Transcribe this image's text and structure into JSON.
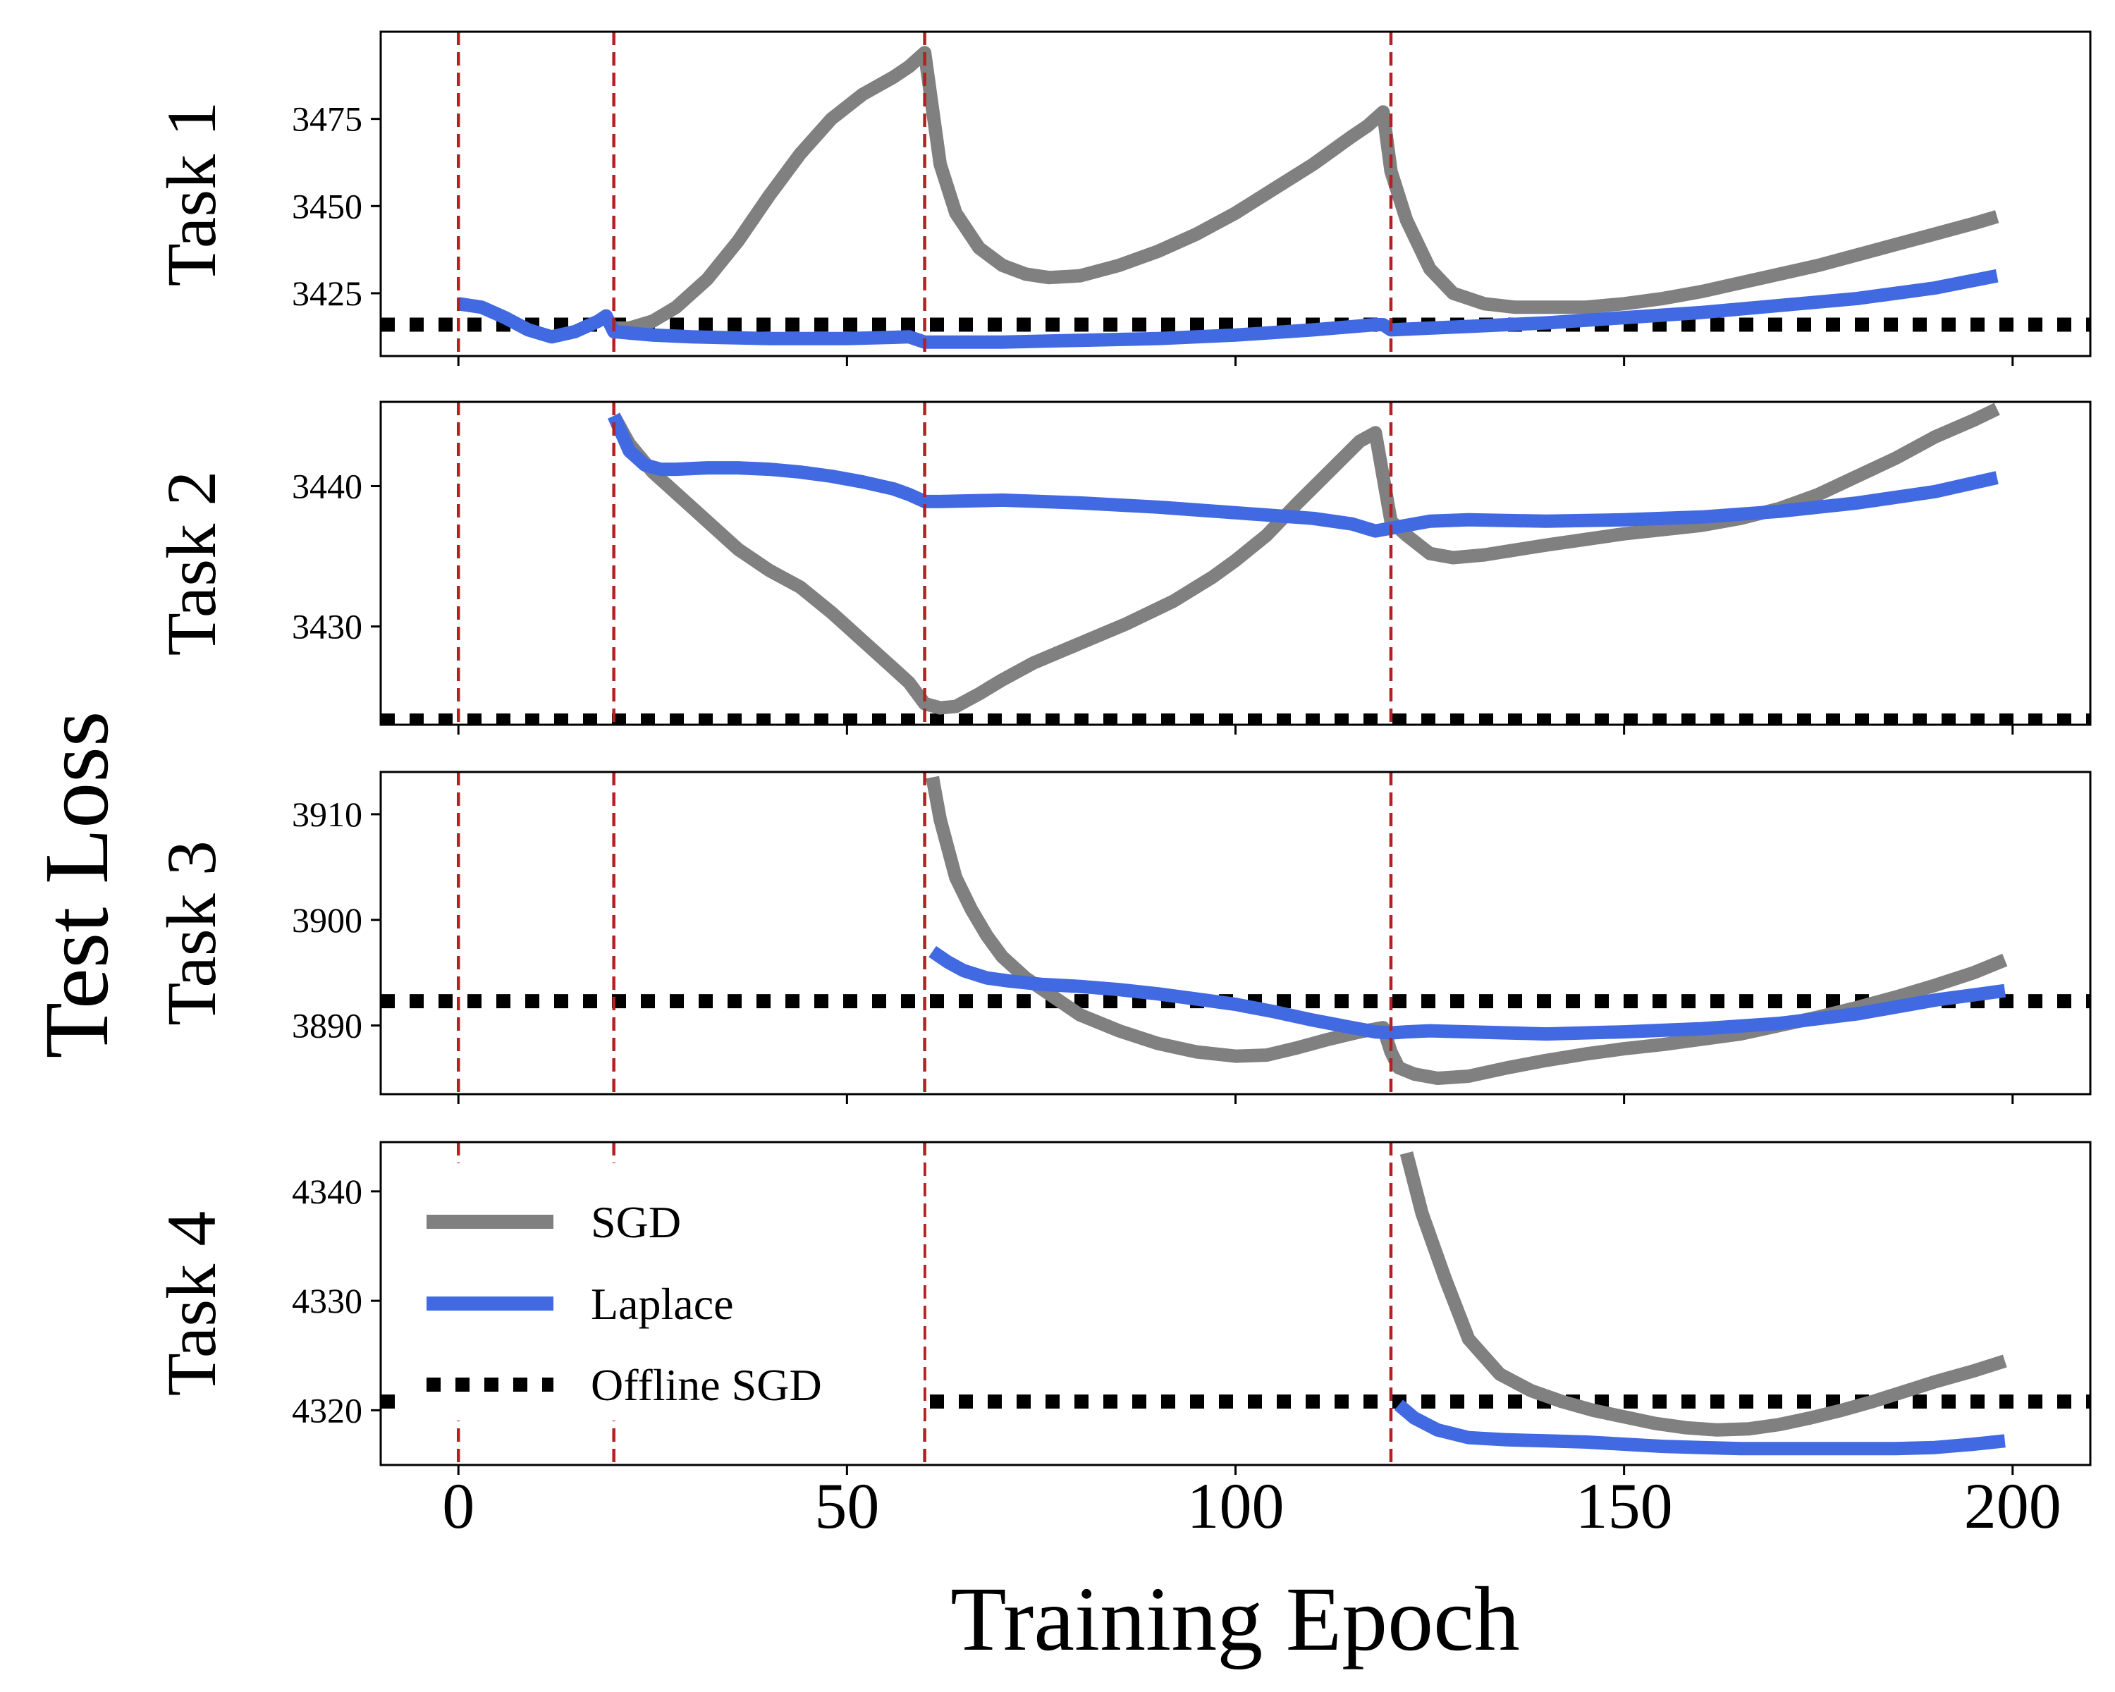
{
  "figure": {
    "ylabel": "Test Loss",
    "xlabel": "Training Epoch",
    "xticks": [
      "0",
      "50",
      "100",
      "150",
      "200"
    ]
  },
  "legend": {
    "placement": "upper-left of Task 4 panel",
    "items": [
      {
        "label": "SGD",
        "color": "#808080",
        "style": "solid"
      },
      {
        "label": "Laplace",
        "color": "#4169E1",
        "style": "solid"
      },
      {
        "label": "Offline SGD",
        "color": "#000000",
        "style": "dotted"
      }
    ]
  },
  "colors": {
    "sgd": "#808080",
    "laplace": "#4169E1",
    "offline": "#000000",
    "boundary": "#B22222"
  },
  "chart_data": [
    {
      "type": "line",
      "panel_label": "Task 1",
      "xlim": [
        -10,
        210
      ],
      "ylim": [
        3407,
        3500
      ],
      "yticks": [
        3425,
        3450,
        3475
      ],
      "task_boundaries": [
        0,
        20,
        60,
        120
      ],
      "offline_sgd": 3416,
      "series": [
        {
          "name": "SGD",
          "x": [
            20,
            22,
            25,
            28,
            32,
            36,
            40,
            44,
            48,
            52,
            56,
            58,
            60,
            62,
            64,
            67,
            70,
            73,
            76,
            80,
            85,
            90,
            95,
            100,
            105,
            110,
            115,
            117,
            119,
            120,
            122,
            125,
            128,
            132,
            136,
            140,
            145,
            150,
            155,
            160,
            165,
            170,
            175,
            180,
            185,
            190,
            195,
            198
          ],
          "y": [
            3415,
            3415,
            3417,
            3421,
            3429,
            3440,
            3453,
            3465,
            3475,
            3482,
            3487,
            3490,
            3494,
            3462,
            3448,
            3438,
            3433,
            3430.5,
            3429.5,
            3430,
            3433,
            3437,
            3442,
            3448,
            3455,
            3462,
            3470,
            3473,
            3477,
            3460,
            3446,
            3432,
            3425,
            3422,
            3421,
            3421,
            3421,
            3422,
            3423.5,
            3425.5,
            3428,
            3430.5,
            3433,
            3436,
            3439,
            3442,
            3445,
            3447
          ]
        },
        {
          "name": "Laplace",
          "x": [
            0,
            3,
            6,
            9,
            12,
            15,
            18,
            19,
            20,
            25,
            30,
            40,
            50,
            58,
            60,
            62,
            70,
            80,
            90,
            100,
            110,
            118,
            119,
            120,
            125,
            130,
            140,
            150,
            160,
            170,
            180,
            190,
            198
          ],
          "y": [
            3422,
            3421,
            3418,
            3414.5,
            3412.5,
            3414,
            3417,
            3418.5,
            3414,
            3413,
            3412.5,
            3412,
            3412,
            3412.5,
            3411,
            3411,
            3411,
            3411.5,
            3412,
            3413,
            3414.5,
            3416,
            3416,
            3414.5,
            3415,
            3415.5,
            3416.5,
            3418,
            3419.5,
            3421.5,
            3423.5,
            3426.5,
            3430
          ]
        }
      ]
    },
    {
      "type": "line",
      "panel_label": "Task 2",
      "xlim": [
        -10,
        210
      ],
      "ylim": [
        3423,
        3446
      ],
      "yticks": [
        3430,
        3440
      ],
      "task_boundaries": [
        0,
        20,
        60,
        120
      ],
      "offline_sgd": 3423.3,
      "series": [
        {
          "name": "SGD",
          "x": [
            20,
            22,
            25,
            28,
            32,
            36,
            40,
            44,
            48,
            52,
            56,
            58,
            60,
            62,
            64,
            67,
            70,
            74,
            80,
            86,
            92,
            97,
            100,
            104,
            108,
            112,
            116,
            118,
            120,
            122,
            125,
            128,
            132,
            140,
            150,
            160,
            165,
            170,
            175,
            180,
            185,
            190,
            195,
            198
          ],
          "y": [
            3445,
            3443,
            3441,
            3439.5,
            3437.5,
            3435.5,
            3434,
            3432.8,
            3431,
            3429,
            3427,
            3426,
            3424.5,
            3424.2,
            3424.3,
            3425.2,
            3426.2,
            3427.4,
            3428.8,
            3430.2,
            3431.8,
            3433.5,
            3434.7,
            3436.5,
            3438.8,
            3441,
            3443.2,
            3443.8,
            3437.5,
            3436.5,
            3435.2,
            3434.9,
            3435.1,
            3435.8,
            3436.6,
            3437.2,
            3437.7,
            3438.4,
            3439.4,
            3440.7,
            3442,
            3443.5,
            3444.7,
            3445.5
          ]
        },
        {
          "name": "Laplace",
          "x": [
            20,
            22,
            24,
            26,
            28,
            32,
            36,
            40,
            44,
            48,
            52,
            56,
            58,
            60,
            62,
            70,
            80,
            90,
            100,
            110,
            115,
            118,
            120,
            122,
            125,
            130,
            140,
            150,
            160,
            170,
            180,
            190,
            198
          ],
          "y": [
            3445,
            3442.5,
            3441.5,
            3441.2,
            3441.2,
            3441.3,
            3441.3,
            3441.2,
            3441,
            3440.7,
            3440.3,
            3439.8,
            3439.4,
            3438.9,
            3438.9,
            3439,
            3438.8,
            3438.5,
            3438.1,
            3437.7,
            3437.3,
            3436.8,
            3437,
            3437.2,
            3437.5,
            3437.6,
            3437.5,
            3437.6,
            3437.8,
            3438.2,
            3438.8,
            3439.6,
            3440.6
          ]
        }
      ]
    },
    {
      "type": "line",
      "panel_label": "Task 3",
      "xlim": [
        -10,
        210
      ],
      "ylim": [
        3883.5,
        3914
      ],
      "yticks": [
        3890,
        3900,
        3910
      ],
      "task_boundaries": [
        0,
        20,
        60,
        120
      ],
      "offline_sgd": 3892.3,
      "series": [
        {
          "name": "SGD",
          "x": [
            61,
            62,
            64,
            66,
            68,
            70,
            73,
            76,
            80,
            85,
            90,
            95,
            100,
            104,
            108,
            112,
            116,
            119,
            120,
            121,
            123,
            126,
            130,
            135,
            140,
            145,
            150,
            155,
            160,
            165,
            170,
            175,
            180,
            185,
            190,
            195,
            199
          ],
          "y": [
            3913.5,
            3909.5,
            3904,
            3901,
            3898.5,
            3896.5,
            3894.5,
            3893,
            3891,
            3889.5,
            3888.3,
            3887.5,
            3887.1,
            3887.2,
            3887.9,
            3888.7,
            3889.4,
            3889.8,
            3887.5,
            3886,
            3885.4,
            3885,
            3885.2,
            3886,
            3886.7,
            3887.3,
            3887.8,
            3888.2,
            3888.7,
            3889.2,
            3890,
            3890.8,
            3891.7,
            3892.7,
            3893.8,
            3895,
            3896.2
          ]
        },
        {
          "name": "Laplace",
          "x": [
            61,
            63,
            65,
            68,
            71,
            75,
            80,
            85,
            90,
            95,
            100,
            105,
            110,
            115,
            118,
            120,
            122,
            125,
            130,
            140,
            150,
            160,
            170,
            180,
            190,
            199
          ],
          "y": [
            3897,
            3896,
            3895.2,
            3894.5,
            3894.2,
            3893.9,
            3893.7,
            3893.4,
            3893,
            3892.5,
            3892,
            3891.3,
            3890.5,
            3889.8,
            3889.4,
            3889.3,
            3889.4,
            3889.5,
            3889.4,
            3889.2,
            3889.4,
            3889.7,
            3890.2,
            3891.1,
            3892.4,
            3893.3
          ]
        }
      ]
    },
    {
      "type": "line",
      "panel_label": "Task 4",
      "xlim": [
        -10,
        210
      ],
      "ylim": [
        4315,
        4344.5
      ],
      "yticks": [
        4320,
        4330,
        4340
      ],
      "task_boundaries": [
        0,
        20,
        60,
        120
      ],
      "offline_sgd": 4320.8,
      "series": [
        {
          "name": "SGD",
          "x": [
            122,
            124,
            127,
            130,
            134,
            138,
            142,
            146,
            150,
            154,
            158,
            162,
            166,
            170,
            174,
            178,
            182,
            186,
            190,
            195,
            199
          ],
          "y": [
            4343.5,
            4338,
            4332,
            4326.5,
            4323.3,
            4321.8,
            4320.8,
            4320,
            4319.4,
            4318.8,
            4318.4,
            4318.2,
            4318.3,
            4318.7,
            4319.3,
            4320,
            4320.8,
            4321.7,
            4322.6,
            4323.6,
            4324.5
          ]
        },
        {
          "name": "Laplace",
          "x": [
            121,
            123,
            126,
            130,
            135,
            140,
            145,
            150,
            155,
            160,
            165,
            170,
            175,
            180,
            185,
            190,
            195,
            199
          ],
          "y": [
            4320.5,
            4319.3,
            4318.2,
            4317.5,
            4317.3,
            4317.2,
            4317.1,
            4316.9,
            4316.7,
            4316.6,
            4316.5,
            4316.5,
            4316.5,
            4316.5,
            4316.5,
            4316.6,
            4316.9,
            4317.2
          ]
        }
      ]
    }
  ]
}
